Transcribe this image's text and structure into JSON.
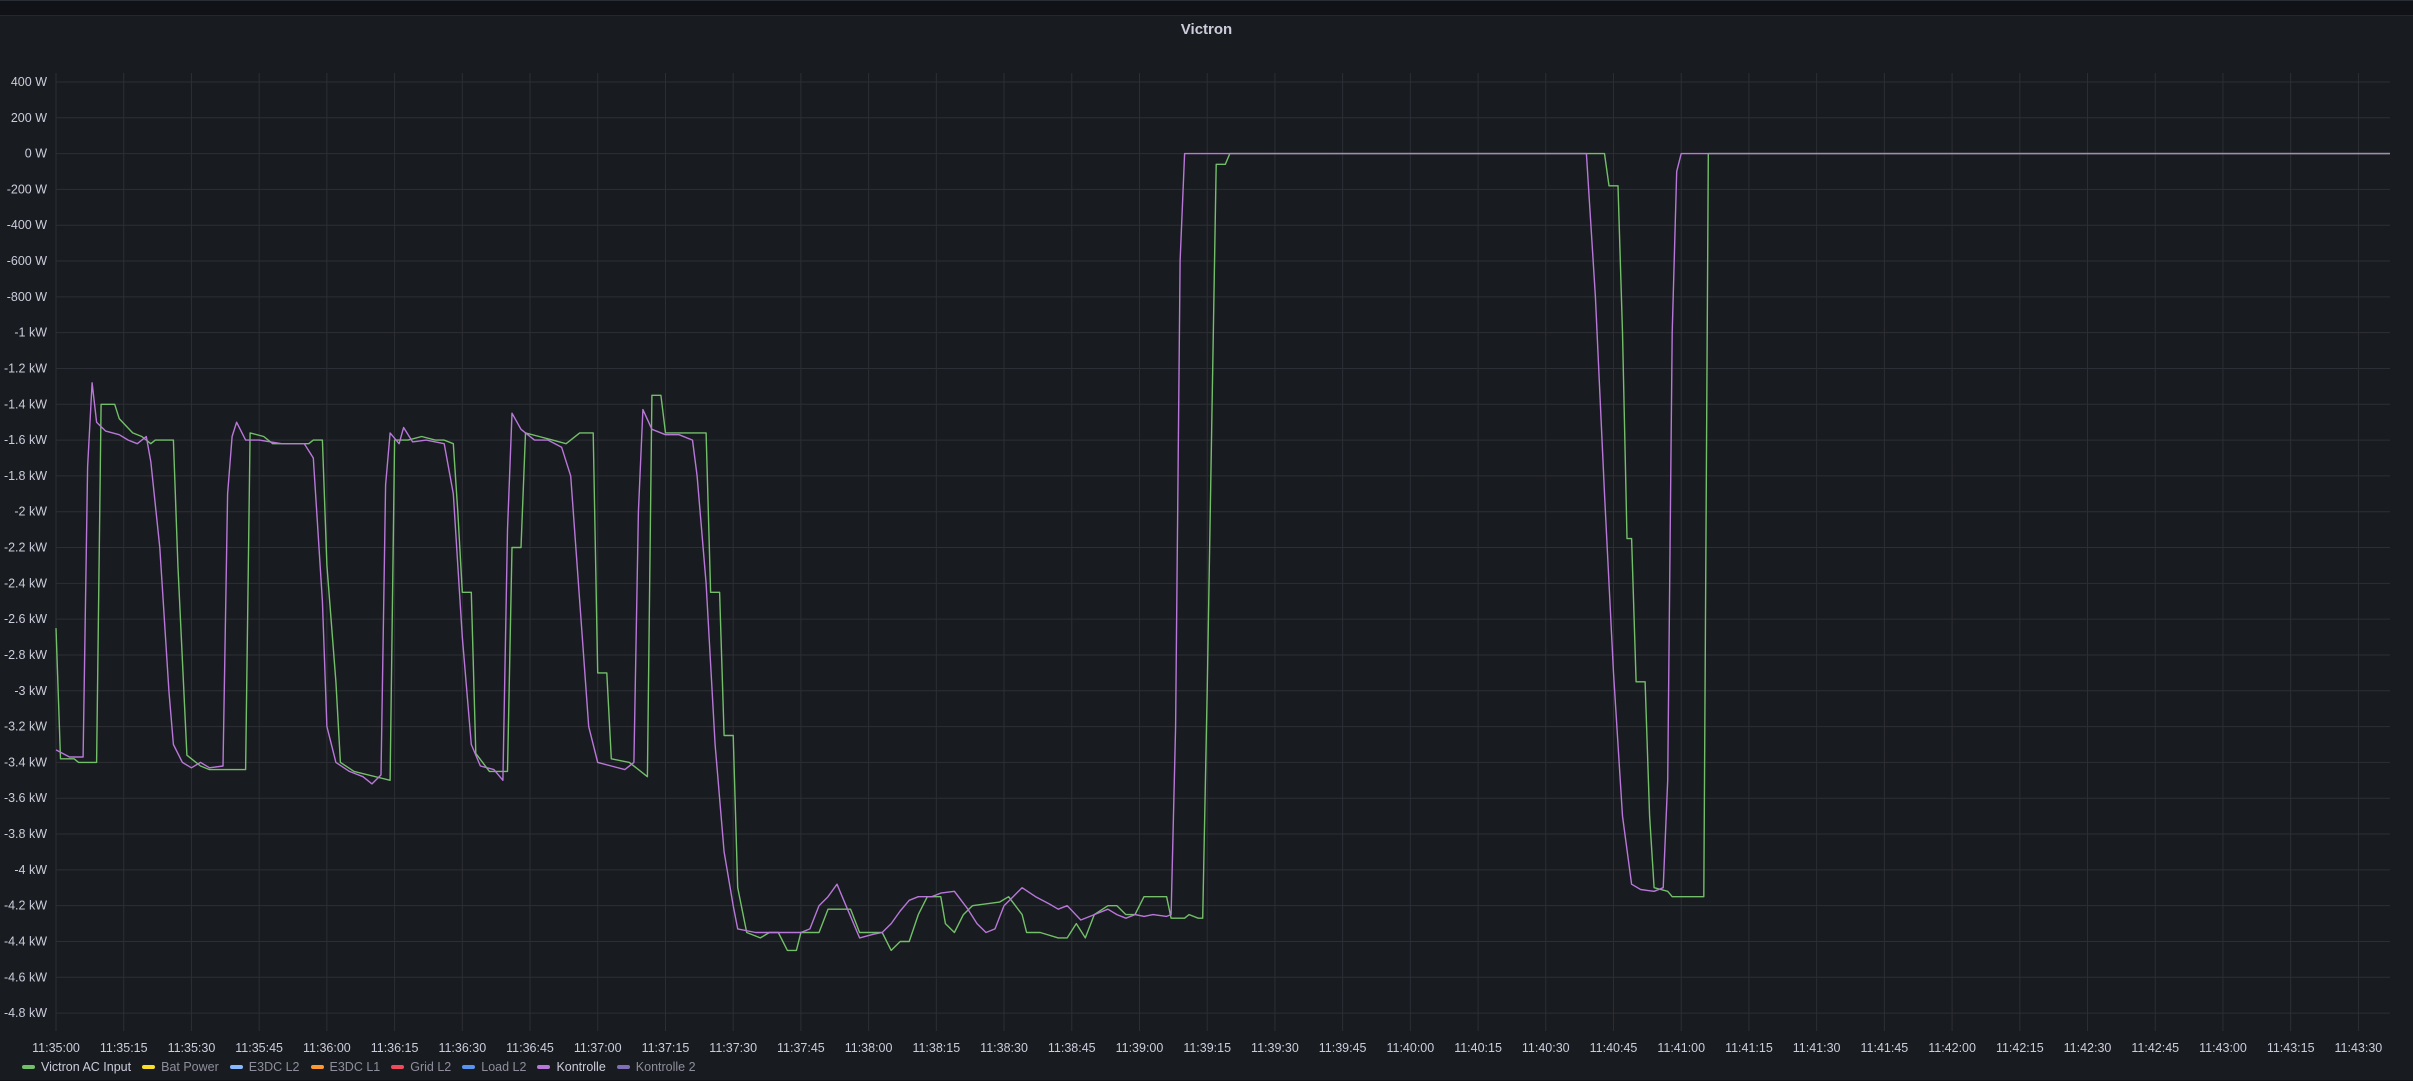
{
  "panel": {
    "title": "Victron"
  },
  "chart_data": {
    "type": "line",
    "title": "Victron",
    "y_unit": "W",
    "ylim": [
      -4900,
      450
    ],
    "yticks": [
      400,
      200,
      0,
      -200,
      -400,
      -600,
      -800,
      -1000,
      -1200,
      -1400,
      -1600,
      -1800,
      -2000,
      -2200,
      -2400,
      -2600,
      -2800,
      -3000,
      -3200,
      -3400,
      -3600,
      -3800,
      -4000,
      -4200,
      -4400,
      -4600,
      -4800
    ],
    "ytick_labels": [
      "400 W",
      "200 W",
      "0 W",
      "-200 W",
      "-400 W",
      "-600 W",
      "-800 W",
      "-1 kW",
      "-1.2 kW",
      "-1.4 kW",
      "-1.6 kW",
      "-1.8 kW",
      "-2 kW",
      "-2.2 kW",
      "-2.4 kW",
      "-2.6 kW",
      "-2.8 kW",
      "-3 kW",
      "-3.2 kW",
      "-3.4 kW",
      "-3.6 kW",
      "-3.8 kW",
      "-4 kW",
      "-4.2 kW",
      "-4.4 kW",
      "-4.6 kW",
      "-4.8 kW"
    ],
    "xlim": [
      "11:35:00",
      "11:43:37"
    ],
    "xticks": [
      "11:35:00",
      "11:35:15",
      "11:35:30",
      "11:35:45",
      "11:36:00",
      "11:36:15",
      "11:36:30",
      "11:36:45",
      "11:37:00",
      "11:37:15",
      "11:37:30",
      "11:37:45",
      "11:38:00",
      "11:38:15",
      "11:38:30",
      "11:38:45",
      "11:39:00",
      "11:39:15",
      "11:39:30",
      "11:39:45",
      "11:40:00",
      "11:40:15",
      "11:40:30",
      "11:40:45",
      "11:41:00",
      "11:41:15",
      "11:41:30",
      "11:41:45",
      "11:42:00",
      "11:42:15",
      "11:42:30",
      "11:42:45",
      "11:43:00",
      "11:43:15",
      "11:43:30"
    ],
    "grid": true,
    "legend_position": "bottom-left",
    "series": [
      {
        "name": "Victron AC Input",
        "color": "#73bf69",
        "visible": true,
        "points": [
          [
            "11:35:00",
            -2650
          ],
          [
            "11:35:01",
            -3380
          ],
          [
            "11:35:04",
            -3380
          ],
          [
            "11:35:05",
            -3400
          ],
          [
            "11:35:09",
            -3400
          ],
          [
            "11:35:10",
            -1400
          ],
          [
            "11:35:13",
            -1400
          ],
          [
            "11:35:14",
            -1480
          ],
          [
            "11:35:17",
            -1560
          ],
          [
            "11:35:19",
            -1580
          ],
          [
            "11:35:21",
            -1620
          ],
          [
            "11:35:22",
            -1600
          ],
          [
            "11:35:25",
            -1600
          ],
          [
            "11:35:26",
            -1600
          ],
          [
            "11:35:27",
            -2300
          ],
          [
            "11:35:29",
            -3360
          ],
          [
            "11:35:32",
            -3420
          ],
          [
            "11:35:34",
            -3440
          ],
          [
            "11:35:41",
            -3440
          ],
          [
            "11:35:42",
            -3440
          ],
          [
            "11:35:43",
            -1560
          ],
          [
            "11:35:46",
            -1580
          ],
          [
            "11:35:48",
            -1620
          ],
          [
            "11:35:56",
            -1620
          ],
          [
            "11:35:57",
            -1600
          ],
          [
            "11:35:59",
            -1600
          ],
          [
            "11:36:00",
            -2300
          ],
          [
            "11:36:02",
            -2950
          ],
          [
            "11:36:03",
            -3400
          ],
          [
            "11:36:06",
            -3450
          ],
          [
            "11:36:14",
            -3500
          ],
          [
            "11:36:15",
            -1600
          ],
          [
            "11:36:18",
            -1600
          ],
          [
            "11:36:21",
            -1580
          ],
          [
            "11:36:24",
            -1600
          ],
          [
            "11:36:26",
            -1600
          ],
          [
            "11:36:28",
            -1620
          ],
          [
            "11:36:29",
            -2000
          ],
          [
            "11:36:30",
            -2450
          ],
          [
            "11:36:32",
            -2450
          ],
          [
            "11:36:33",
            -3350
          ],
          [
            "11:36:36",
            -3450
          ],
          [
            "11:36:40",
            -3450
          ],
          [
            "11:36:41",
            -2200
          ],
          [
            "11:36:43",
            -2200
          ],
          [
            "11:36:44",
            -1560
          ],
          [
            "11:36:47",
            -1580
          ],
          [
            "11:36:50",
            -1600
          ],
          [
            "11:36:53",
            -1620
          ],
          [
            "11:36:56",
            -1560
          ],
          [
            "11:36:59",
            -1560
          ],
          [
            "11:37:00",
            -2900
          ],
          [
            "11:37:02",
            -2900
          ],
          [
            "11:37:03",
            -3380
          ],
          [
            "11:37:07",
            -3400
          ],
          [
            "11:37:11",
            -3480
          ],
          [
            "11:37:12",
            -1350
          ],
          [
            "11:37:14",
            -1350
          ],
          [
            "11:37:15",
            -1560
          ],
          [
            "11:37:24",
            -1560
          ],
          [
            "11:37:25",
            -2450
          ],
          [
            "11:37:27",
            -2450
          ],
          [
            "11:37:28",
            -3250
          ],
          [
            "11:37:30",
            -3250
          ],
          [
            "11:37:31",
            -4100
          ],
          [
            "11:37:33",
            -4350
          ],
          [
            "11:37:36",
            -4380
          ],
          [
            "11:37:38",
            -4350
          ],
          [
            "11:37:40",
            -4350
          ],
          [
            "11:37:42",
            -4450
          ],
          [
            "11:37:44",
            -4450
          ],
          [
            "11:37:45",
            -4350
          ],
          [
            "11:37:49",
            -4350
          ],
          [
            "11:37:51",
            -4220
          ],
          [
            "11:37:56",
            -4220
          ],
          [
            "11:37:58",
            -4350
          ],
          [
            "11:38:03",
            -4350
          ],
          [
            "11:38:05",
            -4450
          ],
          [
            "11:38:07",
            -4400
          ],
          [
            "11:38:09",
            -4400
          ],
          [
            "11:38:11",
            -4250
          ],
          [
            "11:38:13",
            -4150
          ],
          [
            "11:38:16",
            -4150
          ],
          [
            "11:38:17",
            -4300
          ],
          [
            "11:38:19",
            -4350
          ],
          [
            "11:38:21",
            -4250
          ],
          [
            "11:38:23",
            -4200
          ],
          [
            "11:38:29",
            -4180
          ],
          [
            "11:38:31",
            -4150
          ],
          [
            "11:38:34",
            -4250
          ],
          [
            "11:38:35",
            -4350
          ],
          [
            "11:38:38",
            -4350
          ],
          [
            "11:38:42",
            -4380
          ],
          [
            "11:38:44",
            -4380
          ],
          [
            "11:38:46",
            -4300
          ],
          [
            "11:38:48",
            -4380
          ],
          [
            "11:38:50",
            -4250
          ],
          [
            "11:38:53",
            -4200
          ],
          [
            "11:38:55",
            -4200
          ],
          [
            "11:38:57",
            -4250
          ],
          [
            "11:38:59",
            -4250
          ],
          [
            "11:39:01",
            -4150
          ],
          [
            "11:39:06",
            -4150
          ],
          [
            "11:39:07",
            -4270
          ],
          [
            "11:39:10",
            -4270
          ],
          [
            "11:39:11",
            -4250
          ],
          [
            "11:39:13",
            -4270
          ],
          [
            "11:39:14",
            -4270
          ],
          [
            "11:39:15",
            -3000
          ],
          [
            "11:39:17",
            -60
          ],
          [
            "11:39:19",
            -60
          ],
          [
            "11:39:20",
            0
          ],
          [
            "11:40:43",
            0
          ],
          [
            "11:40:44",
            -180
          ],
          [
            "11:40:46",
            -180
          ],
          [
            "11:40:47",
            -1000
          ],
          [
            "11:40:48",
            -2150
          ],
          [
            "11:40:49",
            -2150
          ],
          [
            "11:40:50",
            -2950
          ],
          [
            "11:40:52",
            -2950
          ],
          [
            "11:40:53",
            -3700
          ],
          [
            "11:40:54",
            -4100
          ],
          [
            "11:40:57",
            -4120
          ],
          [
            "11:40:58",
            -4150
          ],
          [
            "11:41:05",
            -4150
          ],
          [
            "11:41:06",
            0
          ],
          [
            "11:43:37",
            0
          ]
        ]
      },
      {
        "name": "Bat Power",
        "color": "#fade2a",
        "visible": false,
        "points": []
      },
      {
        "name": "E3DC L2",
        "color": "#8ab8ff",
        "visible": false,
        "points": []
      },
      {
        "name": "E3DC L1",
        "color": "#ff9830",
        "visible": false,
        "points": []
      },
      {
        "name": "Grid L2",
        "color": "#f2495c",
        "visible": false,
        "points": []
      },
      {
        "name": "Load L2",
        "color": "#5794f2",
        "visible": false,
        "points": []
      },
      {
        "name": "Kontrolle",
        "color": "#b877d9",
        "visible": true,
        "points": [
          [
            "11:35:00",
            -3330
          ],
          [
            "11:35:03",
            -3370
          ],
          [
            "11:35:06",
            -3370
          ],
          [
            "11:35:07",
            -1750
          ],
          [
            "11:35:08",
            -1280
          ],
          [
            "11:35:09",
            -1500
          ],
          [
            "11:35:11",
            -1550
          ],
          [
            "11:35:14",
            -1570
          ],
          [
            "11:35:16",
            -1600
          ],
          [
            "11:35:18",
            -1620
          ],
          [
            "11:35:20",
            -1580
          ],
          [
            "11:35:21",
            -1720
          ],
          [
            "11:35:23",
            -2200
          ],
          [
            "11:35:25",
            -3000
          ],
          [
            "11:35:26",
            -3300
          ],
          [
            "11:35:28",
            -3400
          ],
          [
            "11:35:30",
            -3430
          ],
          [
            "11:35:32",
            -3400
          ],
          [
            "11:35:34",
            -3430
          ],
          [
            "11:35:37",
            -3420
          ],
          [
            "11:35:38",
            -1900
          ],
          [
            "11:35:39",
            -1580
          ],
          [
            "11:35:40",
            -1500
          ],
          [
            "11:35:42",
            -1600
          ],
          [
            "11:35:45",
            -1600
          ],
          [
            "11:35:50",
            -1620
          ],
          [
            "11:35:55",
            -1620
          ],
          [
            "11:35:57",
            -1700
          ],
          [
            "11:35:59",
            -2500
          ],
          [
            "11:36:00",
            -3200
          ],
          [
            "11:36:02",
            -3400
          ],
          [
            "11:36:05",
            -3450
          ],
          [
            "11:36:08",
            -3480
          ],
          [
            "11:36:10",
            -3520
          ],
          [
            "11:36:12",
            -3470
          ],
          [
            "11:36:13",
            -1850
          ],
          [
            "11:36:14",
            -1560
          ],
          [
            "11:36:16",
            -1620
          ],
          [
            "11:36:17",
            -1530
          ],
          [
            "11:36:19",
            -1610
          ],
          [
            "11:36:22",
            -1600
          ],
          [
            "11:36:26",
            -1620
          ],
          [
            "11:36:28",
            -1900
          ],
          [
            "11:36:30",
            -2700
          ],
          [
            "11:36:32",
            -3300
          ],
          [
            "11:36:34",
            -3420
          ],
          [
            "11:36:37",
            -3440
          ],
          [
            "11:36:39",
            -3500
          ],
          [
            "11:36:40",
            -2100
          ],
          [
            "11:36:41",
            -1450
          ],
          [
            "11:36:43",
            -1540
          ],
          [
            "11:36:46",
            -1600
          ],
          [
            "11:36:49",
            -1600
          ],
          [
            "11:36:52",
            -1640
          ],
          [
            "11:36:54",
            -1800
          ],
          [
            "11:36:56",
            -2500
          ],
          [
            "11:36:58",
            -3200
          ],
          [
            "11:37:00",
            -3400
          ],
          [
            "11:37:03",
            -3420
          ],
          [
            "11:37:06",
            -3440
          ],
          [
            "11:37:08",
            -3400
          ],
          [
            "11:37:09",
            -2000
          ],
          [
            "11:37:10",
            -1430
          ],
          [
            "11:37:12",
            -1540
          ],
          [
            "11:37:15",
            -1570
          ],
          [
            "11:37:18",
            -1570
          ],
          [
            "11:37:21",
            -1600
          ],
          [
            "11:37:22",
            -1800
          ],
          [
            "11:37:24",
            -2400
          ],
          [
            "11:37:26",
            -3300
          ],
          [
            "11:37:28",
            -3900
          ],
          [
            "11:37:30",
            -4200
          ],
          [
            "11:37:31",
            -4330
          ],
          [
            "11:37:35",
            -4350
          ],
          [
            "11:37:40",
            -4350
          ],
          [
            "11:37:45",
            -4350
          ],
          [
            "11:37:47",
            -4330
          ],
          [
            "11:37:49",
            -4200
          ],
          [
            "11:37:51",
            -4150
          ],
          [
            "11:37:53",
            -4080
          ],
          [
            "11:37:55",
            -4200
          ],
          [
            "11:37:58",
            -4380
          ],
          [
            "11:38:01",
            -4360
          ],
          [
            "11:38:03",
            -4350
          ],
          [
            "11:38:05",
            -4300
          ],
          [
            "11:38:07",
            -4230
          ],
          [
            "11:38:09",
            -4170
          ],
          [
            "11:38:11",
            -4150
          ],
          [
            "11:38:14",
            -4150
          ],
          [
            "11:38:16",
            -4130
          ],
          [
            "11:38:19",
            -4120
          ],
          [
            "11:38:22",
            -4220
          ],
          [
            "11:38:24",
            -4300
          ],
          [
            "11:38:26",
            -4350
          ],
          [
            "11:38:28",
            -4330
          ],
          [
            "11:38:30",
            -4200
          ],
          [
            "11:38:32",
            -4150
          ],
          [
            "11:38:34",
            -4100
          ],
          [
            "11:38:37",
            -4150
          ],
          [
            "11:38:40",
            -4190
          ],
          [
            "11:38:42",
            -4220
          ],
          [
            "11:38:44",
            -4200
          ],
          [
            "11:38:47",
            -4280
          ],
          [
            "11:38:50",
            -4250
          ],
          [
            "11:38:53",
            -4220
          ],
          [
            "11:38:55",
            -4250
          ],
          [
            "11:38:57",
            -4270
          ],
          [
            "11:38:59",
            -4250
          ],
          [
            "11:39:01",
            -4260
          ],
          [
            "11:39:03",
            -4250
          ],
          [
            "11:39:06",
            -4260
          ],
          [
            "11:39:07",
            -4250
          ],
          [
            "11:39:08",
            -3200
          ],
          [
            "11:39:09",
            -600
          ],
          [
            "11:39:10",
            0
          ],
          [
            "11:40:39",
            0
          ],
          [
            "11:40:40",
            -400
          ],
          [
            "11:40:41",
            -800
          ],
          [
            "11:40:43",
            -1900
          ],
          [
            "11:40:45",
            -2900
          ],
          [
            "11:40:47",
            -3700
          ],
          [
            "11:40:49",
            -4080
          ],
          [
            "11:40:51",
            -4110
          ],
          [
            "11:40:54",
            -4120
          ],
          [
            "11:40:56",
            -4100
          ],
          [
            "11:40:57",
            -3500
          ],
          [
            "11:40:58",
            -1000
          ],
          [
            "11:40:59",
            -100
          ],
          [
            "11:41:00",
            0
          ],
          [
            "11:43:37",
            0
          ]
        ]
      },
      {
        "name": "Kontrolle 2",
        "color": "#806eb7",
        "visible": false,
        "points": []
      }
    ]
  }
}
